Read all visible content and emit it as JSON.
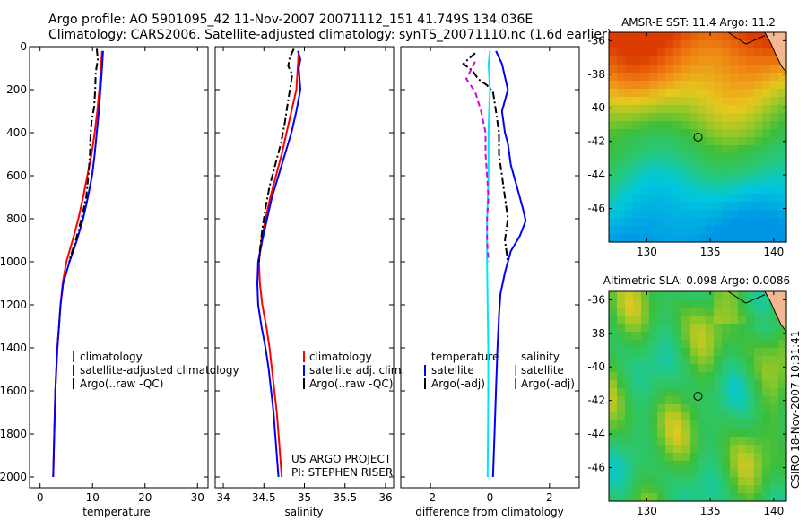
{
  "header": {
    "line1": "Argo profile: AO 5901095_42 11-Nov-2007 20071112_151 41.749S 134.036E",
    "line2": "Climatology: CARS2006. Satellite-adjusted climatology: synTS_20071110.nc (1.6d earlier)"
  },
  "credits": {
    "project": "US ARGO PROJECT",
    "pi": "PI: STEPHEN RISER",
    "side": "CSIRO 18-Nov-2007 10:31:41"
  },
  "colors": {
    "climatology": "#ff0000",
    "satellite": "#0000ff",
    "argo": "#000000",
    "sat_diff_salinity": "#00e5ff",
    "argo_diff_salinity": "#e000e0",
    "marker": "#000000"
  },
  "chart_data": [
    {
      "type": "line",
      "xlabel": "temperature",
      "ylabel": "",
      "xlim": [
        -2,
        32
      ],
      "ylim": [
        2050,
        0
      ],
      "x_ticks": [
        "0",
        "10",
        "20",
        "30"
      ],
      "x_tick_values": [
        0,
        10,
        20,
        30
      ],
      "y_ticks": [
        "0",
        "200",
        "400",
        "600",
        "800",
        "1000",
        "1200",
        "1400",
        "1600",
        "1800",
        "2000"
      ],
      "y_tick_values": [
        0,
        200,
        400,
        600,
        800,
        1000,
        1200,
        1400,
        1600,
        1800,
        2000
      ],
      "legend": [
        "climatology",
        "satellite-adjusted climatology",
        "Argo(..raw -QC)"
      ],
      "series": [
        {
          "name": "climatology",
          "style": "solid",
          "color_key": "climatology",
          "points": [
            [
              11.8,
              20
            ],
            [
              11.6,
              100
            ],
            [
              11.3,
              200
            ],
            [
              10.9,
              300
            ],
            [
              10.4,
              400
            ],
            [
              9.8,
              500
            ],
            [
              9.0,
              600
            ],
            [
              8.2,
              700
            ],
            [
              7.3,
              800
            ],
            [
              6.2,
              900
            ],
            [
              5.0,
              1000
            ],
            [
              4.3,
              1100
            ],
            [
              3.9,
              1200
            ],
            [
              3.6,
              1300
            ],
            [
              3.3,
              1400
            ],
            [
              3.1,
              1500
            ],
            [
              2.9,
              1600
            ],
            [
              2.8,
              1700
            ],
            [
              2.7,
              1800
            ],
            [
              2.6,
              1900
            ],
            [
              2.5,
              2000
            ]
          ]
        },
        {
          "name": "satellite-adjusted climatology",
          "style": "solid",
          "color_key": "satellite",
          "points": [
            [
              12.0,
              20
            ],
            [
              11.8,
              100
            ],
            [
              11.5,
              200
            ],
            [
              11.2,
              300
            ],
            [
              10.8,
              400
            ],
            [
              10.4,
              500
            ],
            [
              9.9,
              600
            ],
            [
              9.1,
              700
            ],
            [
              8.2,
              800
            ],
            [
              7.0,
              900
            ],
            [
              5.6,
              1000
            ],
            [
              4.4,
              1100
            ],
            [
              3.9,
              1200
            ],
            [
              3.6,
              1300
            ],
            [
              3.3,
              1400
            ],
            [
              3.1,
              1500
            ],
            [
              2.9,
              1600
            ],
            [
              2.8,
              1700
            ],
            [
              2.7,
              1800
            ],
            [
              2.6,
              1900
            ],
            [
              2.5,
              2000
            ]
          ]
        },
        {
          "name": "Argo(..raw -QC)",
          "style": "dashdot",
          "color_key": "argo",
          "points": [
            [
              10.8,
              10
            ],
            [
              11.0,
              60
            ],
            [
              10.6,
              120
            ],
            [
              10.5,
              200
            ],
            [
              10.3,
              280
            ],
            [
              9.8,
              350
            ],
            [
              9.6,
              420
            ],
            [
              9.5,
              500
            ],
            [
              9.2,
              600
            ],
            [
              8.8,
              700
            ],
            [
              7.9,
              800
            ],
            [
              6.8,
              900
            ],
            [
              5.5,
              1000
            ]
          ]
        }
      ]
    },
    {
      "type": "line",
      "xlabel": "salinity",
      "ylabel": "",
      "xlim": [
        33.9,
        36.1
      ],
      "ylim": [
        2050,
        0
      ],
      "x_ticks": [
        "34",
        "34.5",
        "35",
        "35.5",
        "36"
      ],
      "x_tick_values": [
        34,
        34.5,
        35,
        35.5,
        36
      ],
      "legend": [
        "climatology",
        "satellite adj. clim.",
        "Argo(..raw -QC)"
      ],
      "series": [
        {
          "name": "climatology",
          "style": "solid",
          "color_key": "climatology",
          "points": [
            [
              34.93,
              20
            ],
            [
              34.92,
              80
            ],
            [
              34.9,
              200
            ],
            [
              34.84,
              300
            ],
            [
              34.78,
              400
            ],
            [
              34.72,
              500
            ],
            [
              34.65,
              600
            ],
            [
              34.58,
              700
            ],
            [
              34.52,
              800
            ],
            [
              34.47,
              900
            ],
            [
              34.44,
              1000
            ],
            [
              34.45,
              1100
            ],
            [
              34.48,
              1200
            ],
            [
              34.53,
              1300
            ],
            [
              34.57,
              1400
            ],
            [
              34.6,
              1500
            ],
            [
              34.63,
              1600
            ],
            [
              34.66,
              1700
            ],
            [
              34.68,
              1800
            ],
            [
              34.7,
              1900
            ],
            [
              34.72,
              2000
            ]
          ]
        },
        {
          "name": "satellite adj. clim.",
          "style": "solid",
          "color_key": "satellite",
          "points": [
            [
              34.92,
              20
            ],
            [
              34.95,
              60
            ],
            [
              34.93,
              100
            ],
            [
              34.95,
              200
            ],
            [
              34.9,
              300
            ],
            [
              34.84,
              400
            ],
            [
              34.76,
              500
            ],
            [
              34.68,
              600
            ],
            [
              34.6,
              700
            ],
            [
              34.54,
              800
            ],
            [
              34.48,
              900
            ],
            [
              34.43,
              1000
            ],
            [
              34.42,
              1100
            ],
            [
              34.43,
              1200
            ],
            [
              34.47,
              1300
            ],
            [
              34.52,
              1400
            ],
            [
              34.56,
              1500
            ],
            [
              34.59,
              1600
            ],
            [
              34.62,
              1700
            ],
            [
              34.64,
              1800
            ],
            [
              34.66,
              1900
            ],
            [
              34.68,
              2000
            ]
          ]
        },
        {
          "name": "Argo(..raw -QC)",
          "style": "dashdot",
          "color_key": "argo",
          "points": [
            [
              34.87,
              10
            ],
            [
              34.82,
              50
            ],
            [
              34.8,
              90
            ],
            [
              34.85,
              130
            ],
            [
              34.83,
              180
            ],
            [
              34.8,
              250
            ],
            [
              34.76,
              350
            ],
            [
              34.71,
              450
            ],
            [
              34.64,
              550
            ],
            [
              34.57,
              650
            ],
            [
              34.52,
              750
            ],
            [
              34.48,
              850
            ],
            [
              34.45,
              950
            ],
            [
              34.44,
              1000
            ]
          ]
        }
      ]
    },
    {
      "type": "line",
      "xlabel": "difference from climatology",
      "ylabel": "",
      "xlim": [
        -3,
        3
      ],
      "ylim": [
        2050,
        0
      ],
      "x_ticks": [
        "-2",
        "0",
        "2"
      ],
      "x_tick_values": [
        -2,
        0,
        2
      ],
      "legend_groups": [
        {
          "title": "temperature",
          "entries": [
            "satellite",
            "Argo(-adj)"
          ]
        },
        {
          "title": "salinity",
          "entries": [
            "satellite",
            "Argo(-adj)"
          ]
        }
      ],
      "series": [
        {
          "name": "temperature satellite",
          "style": "solid",
          "color_key": "satellite",
          "points": [
            [
              0.2,
              20
            ],
            [
              0.4,
              80
            ],
            [
              0.6,
              200
            ],
            [
              0.5,
              250
            ],
            [
              0.4,
              300
            ],
            [
              0.5,
              400
            ],
            [
              0.6,
              450
            ],
            [
              0.7,
              550
            ],
            [
              0.9,
              650
            ],
            [
              1.1,
              750
            ],
            [
              1.2,
              810
            ],
            [
              1.0,
              880
            ],
            [
              0.7,
              950
            ],
            [
              0.5,
              1050
            ],
            [
              0.35,
              1150
            ],
            [
              0.3,
              1250
            ],
            [
              0.25,
              1400
            ],
            [
              0.2,
              1600
            ],
            [
              0.15,
              1800
            ],
            [
              0.1,
              2000
            ]
          ]
        },
        {
          "name": "temperature Argo(-adj)",
          "style": "dashdot",
          "color_key": "argo",
          "points": [
            [
              -0.5,
              30
            ],
            [
              -0.9,
              80
            ],
            [
              -0.6,
              110
            ],
            [
              -0.4,
              150
            ],
            [
              -0.1,
              180
            ],
            [
              0.1,
              210
            ],
            [
              0.2,
              300
            ],
            [
              0.3,
              400
            ],
            [
              0.3,
              500
            ],
            [
              0.4,
              600
            ],
            [
              0.5,
              700
            ],
            [
              0.6,
              800
            ],
            [
              0.5,
              900
            ],
            [
              0.6,
              1000
            ]
          ]
        },
        {
          "name": "salinity satellite",
          "style": "solid",
          "color_key": "sat_diff_salinity",
          "points": [
            [
              0.0,
              20
            ],
            [
              -0.05,
              80
            ],
            [
              0.0,
              200
            ],
            [
              -0.03,
              300
            ],
            [
              -0.05,
              400
            ],
            [
              -0.05,
              500
            ],
            [
              -0.05,
              600
            ],
            [
              -0.1,
              800
            ],
            [
              -0.1,
              1000
            ],
            [
              -0.08,
              1200
            ],
            [
              -0.06,
              1400
            ],
            [
              -0.06,
              1600
            ],
            [
              -0.07,
              1800
            ],
            [
              -0.08,
              2000
            ]
          ]
        },
        {
          "name": "salinity Argo(-adj)",
          "style": "dashed",
          "color_key": "argo_diff_salinity",
          "points": [
            [
              -0.5,
              70
            ],
            [
              -0.8,
              150
            ],
            [
              -0.5,
              210
            ],
            [
              -0.3,
              300
            ],
            [
              -0.15,
              400
            ],
            [
              -0.15,
              500
            ],
            [
              -0.1,
              600
            ],
            [
              -0.05,
              700
            ],
            [
              -0.1,
              800
            ],
            [
              -0.1,
              900
            ],
            [
              -0.05,
              1000
            ]
          ]
        }
      ]
    },
    {
      "type": "heatmap",
      "title": "AMSR-E SST: 11.4 Argo: 11.2",
      "xlim": [
        127,
        141
      ],
      "ylim": [
        -48,
        -35.5
      ],
      "x_ticks": [
        "130",
        "135",
        "140"
      ],
      "x_tick_values": [
        130,
        135,
        140
      ],
      "y_ticks": [
        "-36",
        "-38",
        "-40",
        "-42",
        "-44",
        "-46"
      ],
      "y_tick_values": [
        -36,
        -38,
        -40,
        -42,
        -44,
        -46
      ],
      "argo_position": [
        134.036,
        -41.749
      ]
    },
    {
      "type": "heatmap",
      "title": "Altimetric SLA: 0.098 Argo: 0.0086",
      "xlim": [
        127,
        141
      ],
      "ylim": [
        -48,
        -35.5
      ],
      "x_ticks": [
        "130",
        "135",
        "140"
      ],
      "x_tick_values": [
        130,
        135,
        140
      ],
      "y_ticks": [
        "-36",
        "-38",
        "-40",
        "-42",
        "-44",
        "-46"
      ],
      "y_tick_values": [
        -36,
        -38,
        -40,
        -42,
        -44,
        -46
      ],
      "argo_position": [
        134.036,
        -41.749
      ]
    }
  ]
}
